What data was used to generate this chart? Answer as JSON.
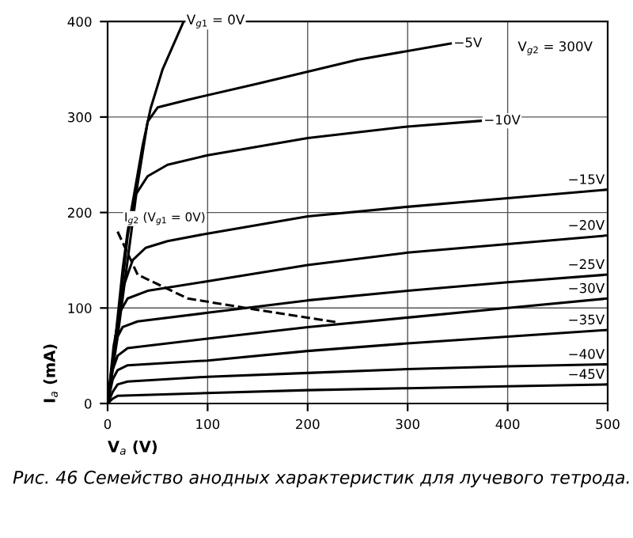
{
  "chart_data": {
    "type": "line",
    "xlabel": "V$_{a}$ (V)",
    "ylabel": "I$_{a}$ (mA)",
    "xlim": [
      0,
      500
    ],
    "ylim": [
      0,
      400
    ],
    "xticks": [
      0,
      100,
      200,
      300,
      400,
      500
    ],
    "yticks": [
      0,
      100,
      200,
      300,
      400
    ],
    "grid": true,
    "marker": "none",
    "series": [
      {
        "name": "V$_{g1}$ = 0V",
        "color": "#000000",
        "x": [
          0,
          5,
          10,
          15,
          20,
          27,
          35,
          43,
          55,
          76
        ],
        "values": [
          0,
          40,
          90,
          140,
          180,
          222,
          270,
          309,
          350,
          400
        ]
      },
      {
        "name": "−5V",
        "color": "#000000",
        "x": [
          0,
          10,
          20,
          30,
          40,
          50,
          80,
          150,
          250,
          343
        ],
        "values": [
          0,
          70,
          150,
          230,
          295,
          310,
          318,
          335,
          360,
          377
        ]
      },
      {
        "name": "−10V",
        "color": "#000000",
        "x": [
          0,
          10,
          20,
          27,
          40,
          60,
          100,
          200,
          300,
          373
        ],
        "values": [
          0,
          80,
          175,
          217,
          238,
          250,
          260,
          278,
          290,
          296
        ]
      },
      {
        "name": "−15V",
        "color": "#000000",
        "x": [
          0,
          8,
          15,
          25,
          38,
          60,
          100,
          200,
          300,
          400,
          500
        ],
        "values": [
          0,
          70,
          120,
          150,
          163,
          170,
          178,
          196,
          206,
          215,
          224
        ]
      },
      {
        "name": "−20V",
        "color": "#000000",
        "x": [
          0,
          6,
          12,
          20,
          40,
          100,
          200,
          300,
          400,
          500
        ],
        "values": [
          0,
          60,
          95,
          110,
          118,
          128,
          145,
          158,
          167,
          176
        ]
      },
      {
        "name": "−25V",
        "color": "#000000",
        "x": [
          0,
          5,
          10,
          15,
          30,
          100,
          200,
          300,
          400,
          500
        ],
        "values": [
          0,
          45,
          70,
          80,
          86,
          95,
          108,
          118,
          127,
          135
        ]
      },
      {
        "name": "−30V",
        "color": "#000000",
        "x": [
          0,
          5,
          10,
          20,
          100,
          200,
          300,
          400,
          500
        ],
        "values": [
          0,
          35,
          50,
          58,
          68,
          80,
          90,
          100,
          110
        ]
      },
      {
        "name": "−35V",
        "color": "#000000",
        "x": [
          0,
          5,
          10,
          20,
          100,
          200,
          300,
          400,
          500
        ],
        "values": [
          0,
          25,
          35,
          40,
          45,
          55,
          63,
          70,
          77
        ]
      },
      {
        "name": "−40V",
        "color": "#000000",
        "x": [
          0,
          5,
          10,
          20,
          100,
          200,
          300,
          400,
          500
        ],
        "values": [
          0,
          12,
          20,
          23,
          28,
          32,
          36,
          39,
          41
        ]
      },
      {
        "name": "−45V",
        "color": "#000000",
        "x": [
          0,
          5,
          10,
          100,
          200,
          300,
          400,
          500
        ],
        "values": [
          0,
          5,
          8,
          11,
          14,
          16,
          18,
          20
        ]
      },
      {
        "name": "I$_{g2}$ (V$_{g1}$ = 0V)",
        "color": "#000000",
        "line_style": "dashed",
        "x": [
          10,
          30,
          80,
          150,
          230
        ],
        "values": [
          180,
          135,
          110,
          98,
          85
        ]
      }
    ],
    "annotations": [
      "V$_{g2}$ = 300V",
      "Рис. 46 Семейство анодных характеристик для лучевого тетрода."
    ]
  }
}
